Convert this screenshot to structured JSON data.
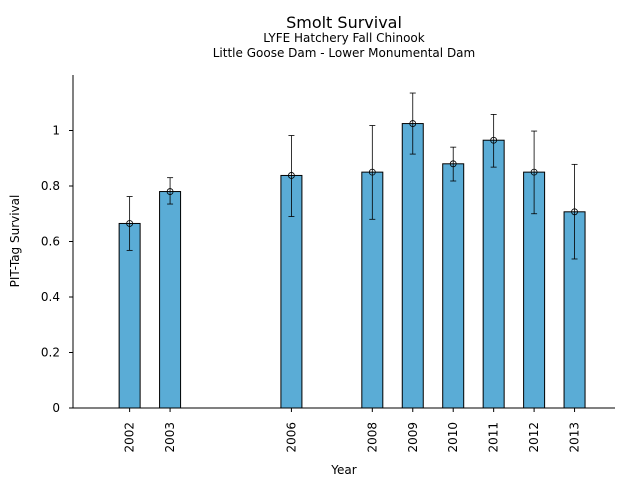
{
  "chart_data": {
    "type": "bar",
    "title": "Smolt Survival",
    "subtitle1": "LYFE Hatchery Fall Chinook",
    "subtitle2": "Little Goose Dam - Lower Monumental Dam",
    "xlabel": "Year",
    "ylabel": "PIT-Tag Survival",
    "ylim": [
      0,
      1.2
    ],
    "xlim": [
      2000.6,
      2014.0
    ],
    "yticks": [
      0,
      0.2,
      0.4,
      0.6,
      0.8,
      1.0
    ],
    "ytick_labels": [
      "0",
      "0.2",
      "0.4",
      "0.6",
      "0.8",
      "1"
    ],
    "categories": [
      "2002",
      "2003",
      "2006",
      "2008",
      "2009",
      "2010",
      "2011",
      "2012",
      "2013"
    ],
    "x": [
      2002,
      2003,
      2006,
      2008,
      2009,
      2010,
      2011,
      2012,
      2013
    ],
    "values": [
      0.665,
      0.78,
      0.838,
      0.85,
      1.025,
      0.88,
      0.965,
      0.85,
      0.707
    ],
    "err_low": [
      0.568,
      0.735,
      0.69,
      0.68,
      0.915,
      0.818,
      0.868,
      0.7,
      0.537
    ],
    "err_high": [
      0.762,
      0.83,
      0.982,
      1.018,
      1.135,
      0.94,
      1.058,
      0.998,
      0.878
    ],
    "bar_color": "#5aacd6",
    "grid": false,
    "legend": "none"
  }
}
